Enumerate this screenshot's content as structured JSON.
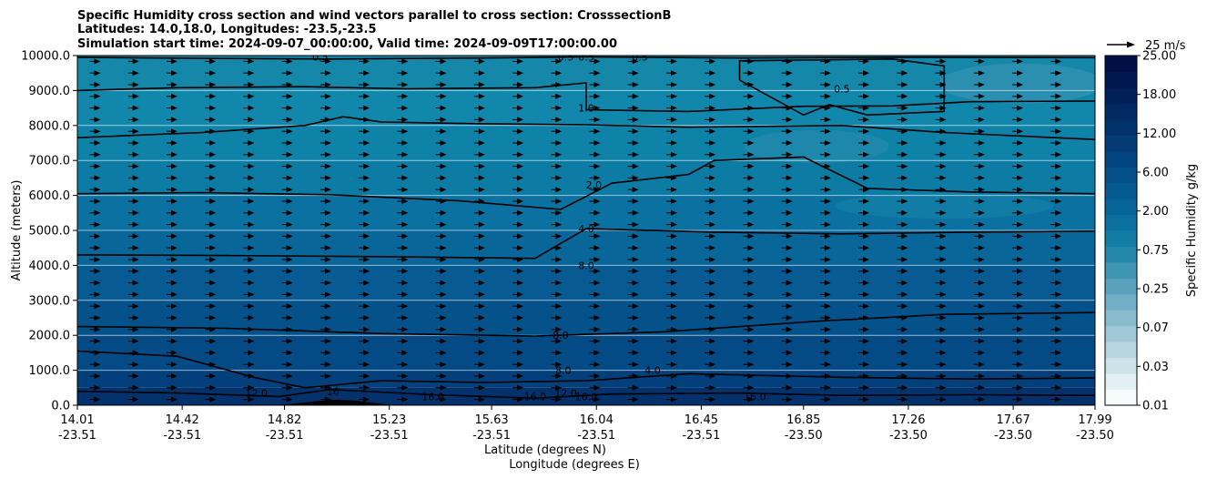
{
  "chart_data": {
    "type": "contour-cross-section",
    "title_lines": [
      "Specific Humidity cross section and wind vectors parallel to cross section: CrosssectionB",
      "Latitudes: 14.0,18.0, Longitudes: -23.5,-23.5",
      "Simulation start time: 2024-09-07_00:00:00, Valid time: 2024-09-09T17:00:00.00"
    ],
    "ylabel": "Altitude (meters)",
    "xlabel_lat": "Latitude (degrees N)",
    "xlabel_lon": "Longitude (degrees E)",
    "ylim": [
      0,
      10000
    ],
    "yticks": [
      "0.0",
      "1000.0",
      "2000.0",
      "3000.0",
      "4000.0",
      "5000.0",
      "6000.0",
      "7000.0",
      "8000.0",
      "9000.0",
      "10000.0"
    ],
    "xlim": [
      14.01,
      17.99
    ],
    "xticks": [
      {
        "lat": "14.01",
        "lon": "-23.51"
      },
      {
        "lat": "14.42",
        "lon": "-23.51"
      },
      {
        "lat": "14.82",
        "lon": "-23.51"
      },
      {
        "lat": "15.23",
        "lon": "-23.51"
      },
      {
        "lat": "15.63",
        "lon": "-23.51"
      },
      {
        "lat": "16.04",
        "lon": "-23.51"
      },
      {
        "lat": "16.45",
        "lon": "-23.51"
      },
      {
        "lat": "16.85",
        "lon": "-23.50"
      },
      {
        "lat": "17.26",
        "lon": "-23.50"
      },
      {
        "lat": "17.67",
        "lon": "-23.50"
      },
      {
        "lat": "17.99",
        "lon": "-23.50"
      }
    ],
    "colorbar": {
      "label": "Specific Humidity g/kg",
      "tick_labels": [
        "0.01",
        "0.03",
        "0.07",
        "0.25",
        "0.75",
        "2.00",
        "6.00",
        "12.00",
        "18.00",
        "25.00"
      ],
      "colors": [
        "#f7fbfc",
        "#e2eff3",
        "#cde3ea",
        "#b7d6e1",
        "#a0c9d8",
        "#89bccf",
        "#71afc6",
        "#59a2bd",
        "#3f95b4",
        "#2588ab",
        "#117ca5",
        "#0b709f",
        "#076499",
        "#055a91",
        "#044f88",
        "#03457f",
        "#023b76",
        "#02326c",
        "#012962",
        "#002058",
        "#00184f",
        "#001046"
      ]
    },
    "wind_reference": "25 m/s",
    "humidity_bands": [
      {
        "level": 10000,
        "color": "#1588aa"
      },
      {
        "level": 9000,
        "color": "#1187ab"
      },
      {
        "level": 8000,
        "color": "#0f82a8"
      },
      {
        "level": 7000,
        "color": "#0d7ca5"
      },
      {
        "level": 6000,
        "color": "#0b71a0"
      },
      {
        "level": 5000,
        "color": "#096699"
      },
      {
        "level": 4000,
        "color": "#075b92"
      },
      {
        "level": 3000,
        "color": "#05528b"
      },
      {
        "level": 2000,
        "color": "#044a84"
      },
      {
        "level": 1000,
        "color": "#033f7a"
      },
      {
        "level": 500,
        "color": "#02316c"
      },
      {
        "level": 0,
        "color": "#012155"
      }
    ],
    "contours": [
      {
        "value": "0.5",
        "points": [
          [
            14.01,
            9950
          ],
          [
            14.5,
            9920
          ],
          [
            15.0,
            9900
          ],
          [
            15.6,
            9930
          ],
          [
            16.0,
            9960
          ],
          [
            16.6,
            9930
          ],
          [
            17.2,
            9950
          ],
          [
            17.99,
            9940
          ]
        ]
      },
      {
        "value": "1.0",
        "points": [
          [
            14.01,
            9000
          ],
          [
            14.4,
            9080
          ],
          [
            14.9,
            9110
          ],
          [
            15.3,
            9050
          ],
          [
            15.8,
            9080
          ],
          [
            16.0,
            9220
          ],
          [
            16.0,
            8450
          ],
          [
            16.4,
            8400
          ],
          [
            16.85,
            8550
          ],
          [
            17.2,
            8560
          ],
          [
            17.5,
            8680
          ],
          [
            17.99,
            8700
          ]
        ]
      },
      {
        "value": "1.0",
        "points": [
          [
            14.01,
            7650
          ],
          [
            14.5,
            7800
          ],
          [
            14.9,
            8000
          ],
          [
            15.05,
            8250
          ],
          [
            15.2,
            8100
          ],
          [
            15.6,
            8050
          ],
          [
            16.0,
            8020
          ],
          [
            16.4,
            7950
          ],
          [
            17.0,
            8000
          ],
          [
            17.4,
            7800
          ],
          [
            17.99,
            7600
          ]
        ]
      },
      {
        "value": "2.0",
        "points": [
          [
            14.01,
            6050
          ],
          [
            14.5,
            6080
          ],
          [
            15.0,
            6020
          ],
          [
            15.5,
            5850
          ],
          [
            15.9,
            5600
          ],
          [
            16.1,
            6350
          ],
          [
            16.4,
            6600
          ],
          [
            16.5,
            7000
          ],
          [
            16.85,
            7100
          ],
          [
            17.1,
            6200
          ],
          [
            17.5,
            6100
          ],
          [
            17.99,
            6050
          ]
        ]
      },
      {
        "value": "4.0",
        "points": [
          [
            14.01,
            4300
          ],
          [
            14.6,
            4280
          ],
          [
            15.2,
            4250
          ],
          [
            15.8,
            4200
          ],
          [
            16.0,
            5050
          ],
          [
            16.5,
            4950
          ],
          [
            17.0,
            4900
          ],
          [
            17.5,
            4950
          ],
          [
            17.99,
            4980
          ]
        ]
      },
      {
        "value": "8.0",
        "points": [
          [
            14.01,
            2250
          ],
          [
            14.6,
            2200
          ],
          [
            15.2,
            2050
          ],
          [
            15.8,
            1980
          ],
          [
            16.3,
            2100
          ],
          [
            16.9,
            2400
          ],
          [
            17.4,
            2600
          ],
          [
            17.99,
            2650
          ]
        ]
      },
      {
        "value": "12.0",
        "points": [
          [
            14.01,
            1550
          ],
          [
            14.4,
            1400
          ],
          [
            14.7,
            800
          ],
          [
            14.9,
            500
          ],
          [
            15.2,
            700
          ],
          [
            15.6,
            650
          ],
          [
            16.0,
            700
          ],
          [
            16.4,
            900
          ],
          [
            17.0,
            800
          ],
          [
            17.5,
            750
          ],
          [
            17.99,
            780
          ]
        ]
      },
      {
        "value": "16.0",
        "points": [
          [
            14.01,
            400
          ],
          [
            14.4,
            350
          ],
          [
            14.8,
            250
          ],
          [
            15.0,
            450
          ],
          [
            15.4,
            300
          ],
          [
            15.8,
            200
          ],
          [
            16.1,
            320
          ],
          [
            16.6,
            350
          ],
          [
            17.0,
            280
          ],
          [
            17.5,
            300
          ],
          [
            17.99,
            280
          ]
        ]
      }
    ],
    "contour_labels": [
      {
        "text": "0.5",
        "lat": 14.96,
        "alt": 9960
      },
      {
        "text": "0.5",
        "lat": 15.92,
        "alt": 9960
      },
      {
        "text": "0.5",
        "lat": 16.0,
        "alt": 9960
      },
      {
        "text": "0.5",
        "lat": 16.21,
        "alt": 9960
      },
      {
        "text": "0.5",
        "lat": 17.0,
        "alt": 9050
      },
      {
        "text": "1.0",
        "lat": 16.0,
        "alt": 8500
      },
      {
        "text": "2.0",
        "lat": 16.03,
        "alt": 6300
      },
      {
        "text": "4.0",
        "lat": 16.0,
        "alt": 5050
      },
      {
        "text": "8.0",
        "lat": 16.0,
        "alt": 4000
      },
      {
        "text": "8.0",
        "lat": 15.9,
        "alt": 2000
      },
      {
        "text": "8.0",
        "lat": 15.91,
        "alt": 1000
      },
      {
        "text": "4.0",
        "lat": 16.26,
        "alt": 1000
      },
      {
        "text": "12.0",
        "lat": 14.71,
        "alt": 350
      },
      {
        "text": "12.0",
        "lat": 15.92,
        "alt": 350
      },
      {
        "text": "16.0",
        "lat": 15.4,
        "alt": 250
      },
      {
        "text": "16.0",
        "lat": 15.8,
        "alt": 250
      },
      {
        "text": "16.0",
        "lat": 16.0,
        "alt": 250
      },
      {
        "text": "16.0",
        "lat": 16.66,
        "alt": 250
      },
      {
        "text": "16",
        "lat": 15.01,
        "alt": 400
      }
    ],
    "wind_vectors": {
      "columns": 26,
      "rows": 30,
      "u_component": "positive (along cross section)",
      "typical_speed_m_s": 5
    }
  }
}
